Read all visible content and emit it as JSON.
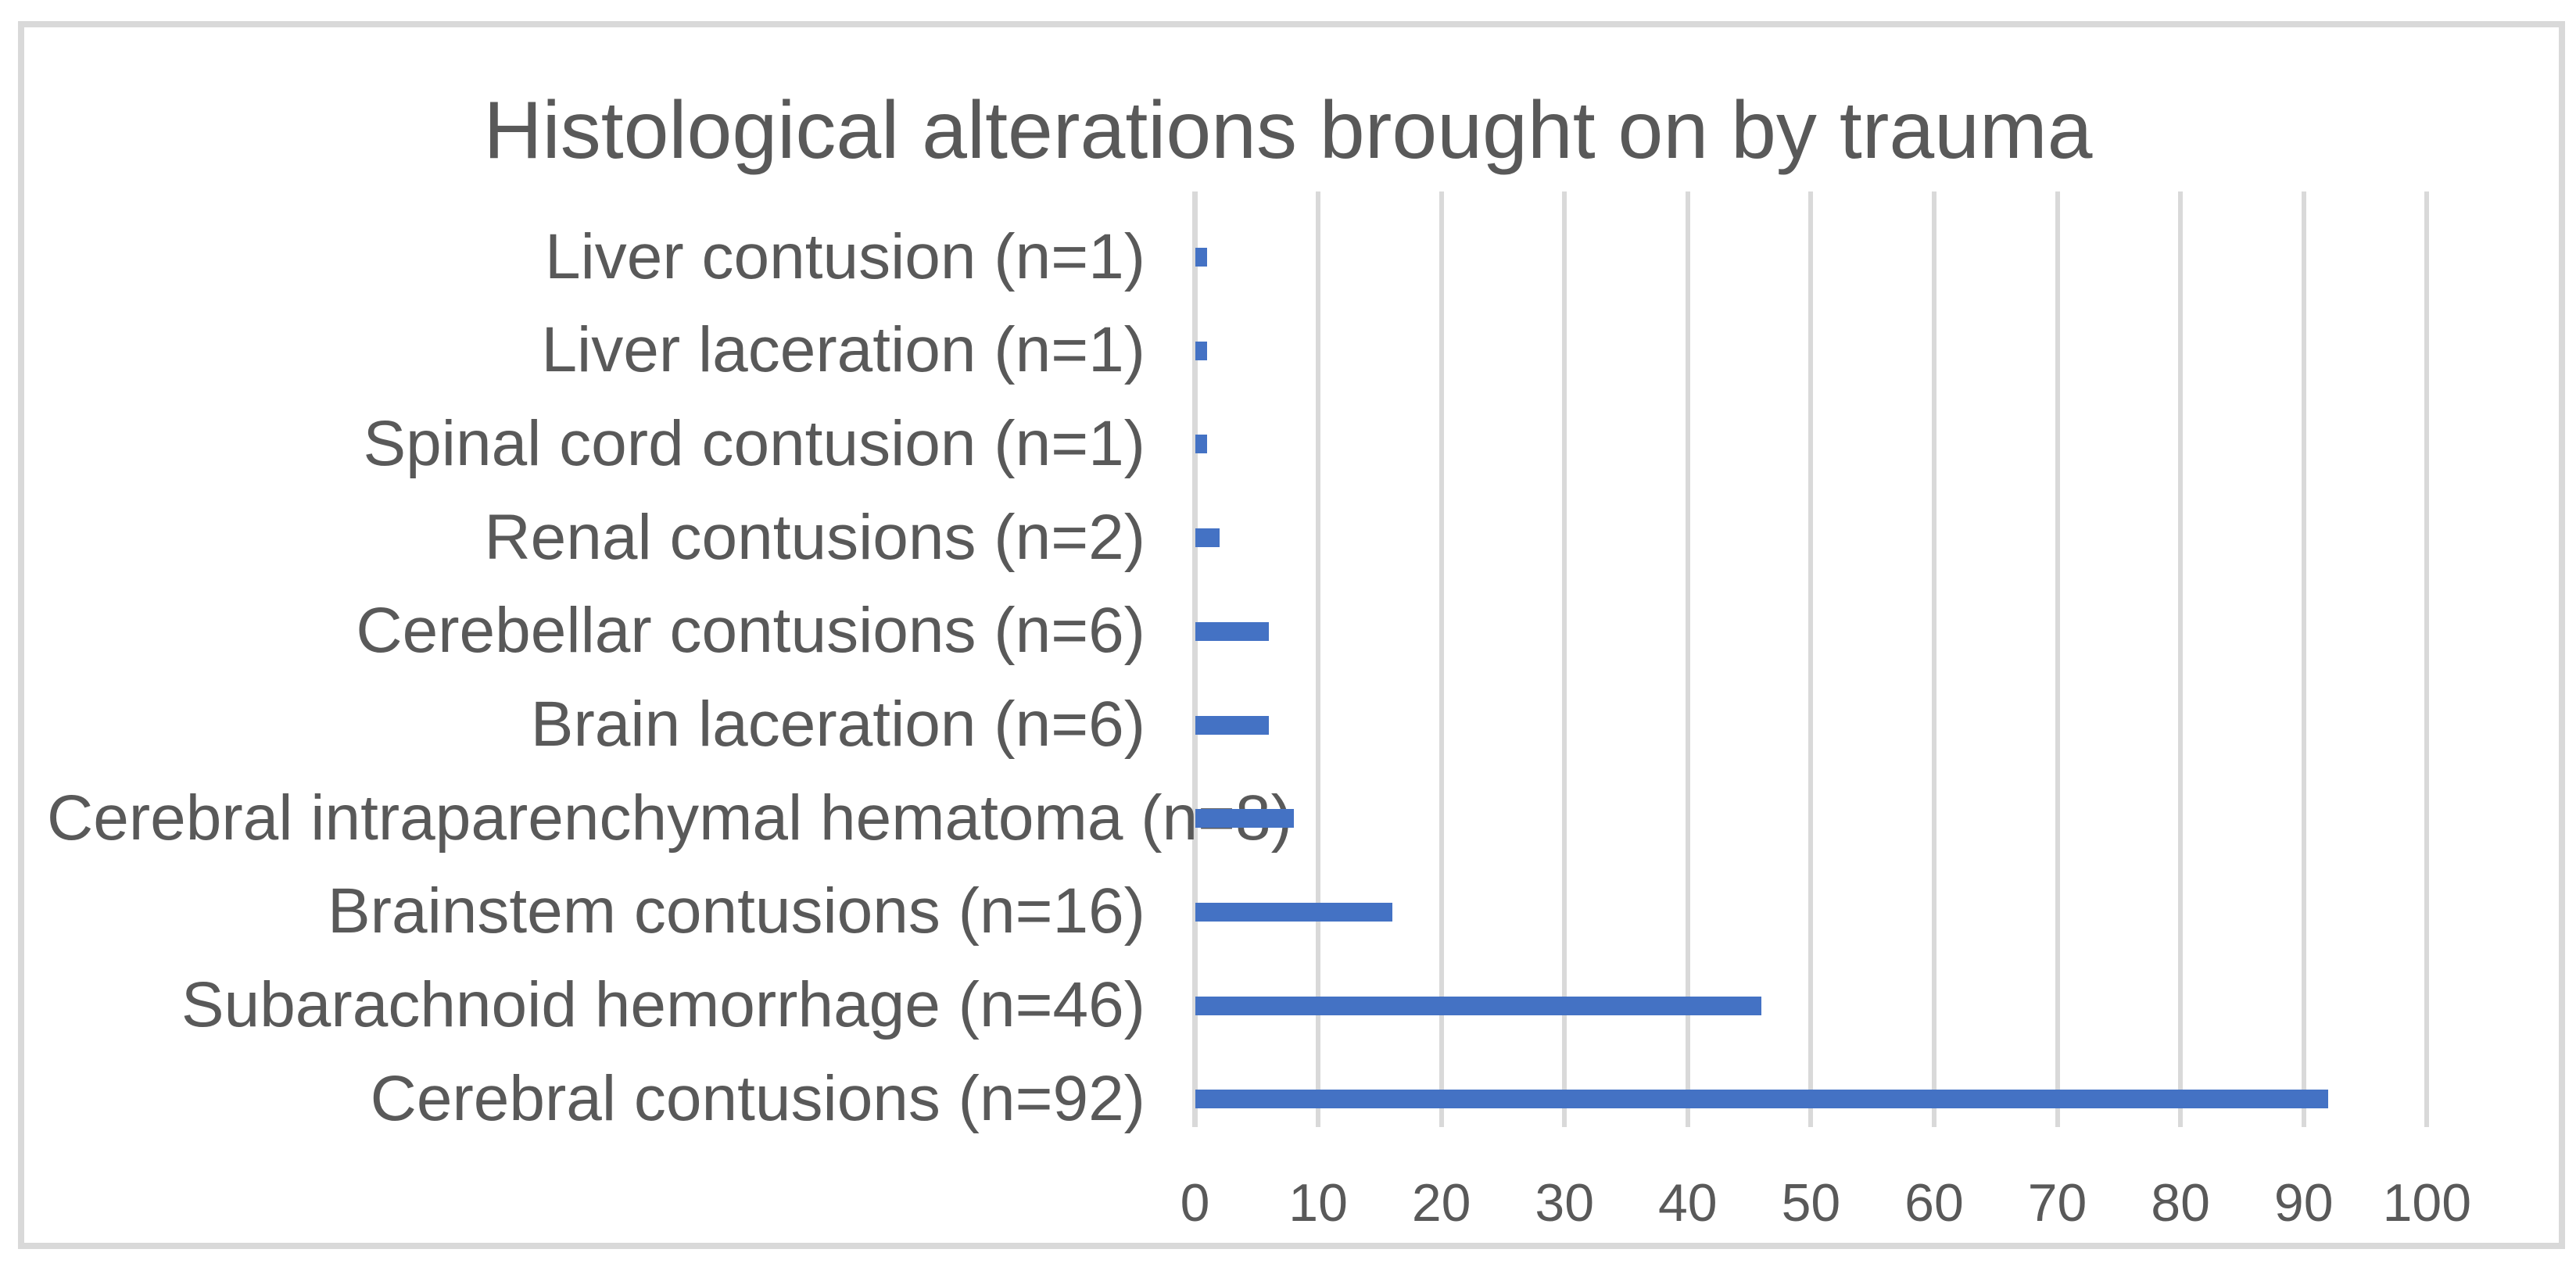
{
  "title": "Histological alterations brought on by trauma",
  "chart_data": {
    "type": "bar",
    "orientation": "horizontal",
    "title": "Histological alterations brought on by trauma",
    "categories": [
      "Liver contusion (n=1)",
      "Liver laceration (n=1)",
      "Spinal cord contusion (n=1)",
      "Renal contusions (n=2)",
      "Cerebellar contusions (n=6)",
      "Brain laceration (n=6)",
      "Cerebral intraparenchymal hematoma (n=8)",
      "Brainstem contusions (n=16)",
      "Subarachnoid hemorrhage (n=46)",
      "Cerebral contusions (n=92)"
    ],
    "values": [
      1,
      1,
      1,
      2,
      6,
      6,
      8,
      16,
      46,
      92
    ],
    "xlabel": "",
    "ylabel": "",
    "xlim": [
      0,
      100
    ],
    "x_ticks": [
      0,
      10,
      20,
      30,
      40,
      50,
      60,
      70,
      80,
      90,
      100
    ],
    "grid": true,
    "legend": "none",
    "colors": {
      "bar": "#4472C4",
      "gridline": "#D9D9D9",
      "border": "#D9D9D9",
      "text": "#595959",
      "background": "#FFFFFF"
    }
  }
}
